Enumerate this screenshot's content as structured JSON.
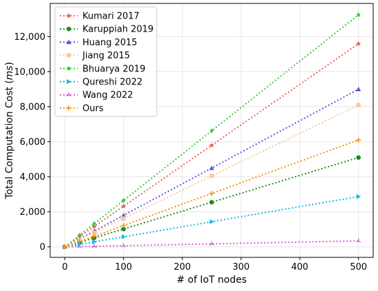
{
  "chart_data": {
    "type": "line",
    "xlabel": "# of IoT nodes",
    "ylabel_prefix": "Total Computation Cost (",
    "ylabel_unit": "ms",
    "ylabel_suffix": ")",
    "x": [
      0,
      25,
      50,
      100,
      250,
      500
    ],
    "xlim": [
      -25,
      525
    ],
    "ylim": [
      -600,
      13900
    ],
    "xticks": [
      0,
      100,
      200,
      300,
      400,
      500
    ],
    "xtick_labels": [
      "0",
      "100",
      "200",
      "300",
      "400",
      "500"
    ],
    "yticks": [
      0,
      2000,
      4000,
      6000,
      8000,
      10000,
      12000
    ],
    "ytick_labels": [
      "0",
      "2,000",
      "4,000",
      "6,000",
      "8,000",
      "10,000",
      "12,000"
    ],
    "grid": true,
    "legend_position": "top-left",
    "series": [
      {
        "name": "Kumari 2017",
        "color": "#e8605a",
        "marker": "star",
        "values": [
          0,
          580,
          1160,
          2320,
          5800,
          11600
        ]
      },
      {
        "name": "Karuppiah 2019",
        "color": "#1e8a1e",
        "marker": "circle",
        "values": [
          0,
          255,
          510,
          1020,
          2550,
          5100
        ]
      },
      {
        "name": "Huang 2015",
        "color": "#5a55d6",
        "marker": "triangle",
        "values": [
          0,
          450,
          900,
          1800,
          4500,
          9000
        ]
      },
      {
        "name": "Jiang 2015",
        "color": "#ffc890",
        "marker": "square",
        "values": [
          0,
          405,
          810,
          1620,
          4050,
          8100
        ]
      },
      {
        "name": "Bhuarya 2019",
        "color": "#3ac93a",
        "marker": "diamond",
        "values": [
          0,
          662,
          1325,
          2650,
          6625,
          13250
        ]
      },
      {
        "name": "Qureshi 2022",
        "color": "#14b8e8",
        "marker": "triangle-right",
        "values": [
          0,
          143,
          287,
          574,
          1435,
          2870
        ]
      },
      {
        "name": "Wang 2022",
        "color": "#d65ad6",
        "marker": "tri",
        "values": [
          0,
          17,
          34,
          68,
          170,
          340
        ]
      },
      {
        "name": "Ours",
        "color": "#ff8c00",
        "marker": "plus",
        "values": [
          0,
          305,
          610,
          1220,
          3050,
          6100
        ]
      }
    ]
  }
}
